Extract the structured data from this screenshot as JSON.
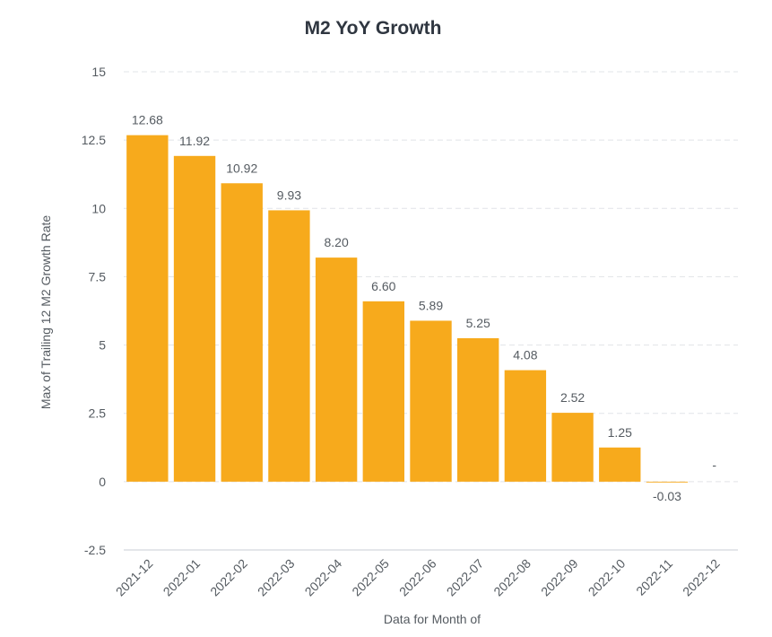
{
  "chart_data": {
    "type": "bar",
    "title": "M2 YoY Growth",
    "xlabel": "Data for Month of",
    "ylabel": "Max of Trailing 12 M2 Growth Rate",
    "categories": [
      "2021-12",
      "2022-01",
      "2022-02",
      "2022-03",
      "2022-04",
      "2022-05",
      "2022-06",
      "2022-07",
      "2022-08",
      "2022-09",
      "2022-10",
      "2022-11",
      "2022-12"
    ],
    "values": [
      12.68,
      11.92,
      10.92,
      9.93,
      8.2,
      6.6,
      5.89,
      5.25,
      4.08,
      2.52,
      1.25,
      -0.03,
      null
    ],
    "value_labels": [
      "12.68",
      "11.92",
      "10.92",
      "9.93",
      "8.20",
      "6.60",
      "5.89",
      "5.25",
      "4.08",
      "2.52",
      "1.25",
      "-0.03",
      "-"
    ],
    "ylim": [
      -2.5,
      15
    ],
    "yticks": [
      -2.5,
      0,
      2.5,
      5,
      7.5,
      10,
      12.5,
      15
    ],
    "ytick_labels": [
      "-2.5",
      "0",
      "2.5",
      "5",
      "7.5",
      "10",
      "12.5",
      "15"
    ],
    "grid": true,
    "bar_color": "#f7aa1c"
  }
}
